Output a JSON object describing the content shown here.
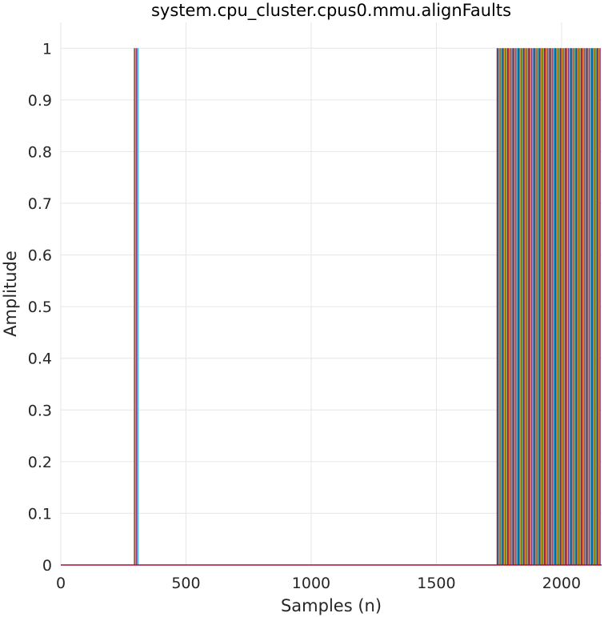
{
  "chart_data": {
    "type": "line",
    "title": "system.cpu_cluster.cpus0.mmu.alignFaults",
    "xlabel": "Samples (n)",
    "ylabel": "Amplitude",
    "xlim": [
      0,
      2160
    ],
    "ylim": [
      0,
      1.05
    ],
    "xticks": [
      "0",
      "500",
      "1000",
      "1500",
      "2000"
    ],
    "yticks": [
      "0",
      "0.1",
      "0.2",
      "0.3",
      "0.4",
      "0.5",
      "0.6",
      "0.7",
      "0.8",
      "0.9",
      "1"
    ],
    "grid": true,
    "baseline_color": "#a2142f",
    "series_colors": [
      "#0072bd",
      "#d95319",
      "#edb120",
      "#7e2f8e",
      "#77ac30",
      "#4dbeee",
      "#a2142f"
    ],
    "spikes": {
      "value": 1,
      "early_samples": [
        294,
        297,
        300,
        303,
        306,
        309
      ],
      "late_range": [
        1743,
        2155
      ],
      "late_step": 3
    }
  }
}
